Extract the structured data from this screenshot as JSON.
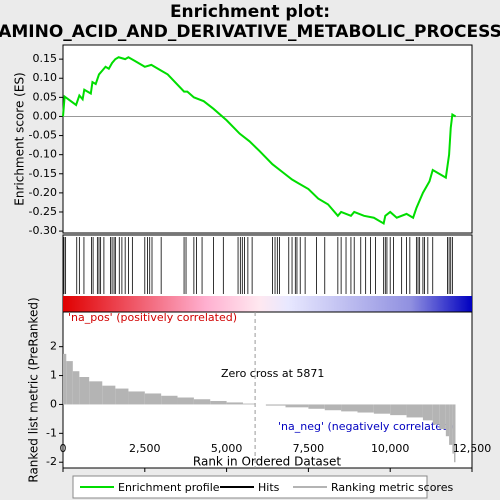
{
  "chart_data": {
    "type": "line",
    "title": [
      "Enrichment plot:",
      "AMINO_ACID_AND_DERIVATIVE_METABOLIC_PROCESS"
    ],
    "ylabel": "Enrichment score (ES)",
    "xlabel": "Rank in Ordered Dataset",
    "xlim": [
      0,
      12500
    ],
    "xticks": [
      0,
      {
        "value": 2500,
        "label": "2,500"
      },
      {
        "value": 5000,
        "label": "5,000"
      },
      {
        "value": 7500,
        "label": "7,500"
      },
      {
        "value": 10000,
        "label": "10,000"
      },
      {
        "value": 12500,
        "label": "12,500"
      }
    ],
    "ylim": [
      -0.305,
      0.187
    ],
    "yticks": [
      0.15,
      {
        "value": 0.1,
        "label": "0.10"
      },
      0.05,
      {
        "value": 0,
        "label": "0.00"
      },
      -0.05,
      {
        "value": -0.1,
        "label": "-0.10"
      },
      -0.15,
      {
        "value": -0.2,
        "label": "-0.20"
      },
      -0.25,
      {
        "value": -0.3,
        "label": "-0.30"
      }
    ],
    "series": [
      {
        "name": "Enrichment profile",
        "color": "#00dd00",
        "x": [
          0,
          50,
          400,
          500,
          600,
          650,
          850,
          900,
          1000,
          1100,
          1200,
          1300,
          1400,
          1500,
          1600,
          1700,
          1900,
          2000,
          2200,
          2500,
          2700,
          3000,
          3200,
          3700,
          3800,
          4000,
          4300,
          4600,
          5000,
          5400,
          5700,
          6000,
          6400,
          6700,
          7000,
          7200,
          7500,
          7800,
          8100,
          8400,
          8500,
          8800,
          8900,
          9200,
          9500,
          9800,
          9850,
          10000,
          10200,
          10500,
          10700,
          10800,
          11000,
          11200,
          11300,
          11700,
          11800,
          11850,
          11900,
          12000
        ],
        "values": [
          0.0,
          0.052,
          0.03,
          0.055,
          0.045,
          0.07,
          0.06,
          0.09,
          0.085,
          0.11,
          0.12,
          0.13,
          0.125,
          0.14,
          0.15,
          0.155,
          0.15,
          0.155,
          0.145,
          0.13,
          0.135,
          0.12,
          0.11,
          0.065,
          0.065,
          0.05,
          0.04,
          0.02,
          -0.01,
          -0.045,
          -0.065,
          -0.09,
          -0.125,
          -0.145,
          -0.165,
          -0.175,
          -0.19,
          -0.215,
          -0.23,
          -0.26,
          -0.25,
          -0.26,
          -0.25,
          -0.26,
          -0.265,
          -0.28,
          -0.26,
          -0.25,
          -0.265,
          -0.255,
          -0.265,
          -0.24,
          -0.2,
          -0.17,
          -0.14,
          -0.16,
          -0.1,
          -0.03,
          0.005,
          0.0
        ]
      }
    ],
    "hits": {
      "name": "Hits",
      "color": "#000000",
      "x": [
        30,
        80,
        420,
        500,
        640,
        870,
        920,
        1050,
        1100,
        1150,
        1250,
        1450,
        1500,
        1560,
        1600,
        1720,
        1800,
        1900,
        2000,
        2120,
        2500,
        2580,
        2650,
        2720,
        3000,
        3700,
        3760,
        4000,
        4080,
        4250,
        4600,
        4900,
        5350,
        5420,
        5480,
        5550,
        5650,
        5780,
        6400,
        6480,
        6550,
        6620,
        6900,
        7000,
        7100,
        7150,
        7250,
        7400,
        7750,
        8000,
        8400,
        8500,
        8650,
        8800,
        8900,
        9100,
        9250,
        9400,
        9550,
        9800,
        9850,
        9900,
        10000,
        10100,
        10350,
        10500,
        10600,
        10800,
        10850,
        10900,
        11000,
        11050,
        11150,
        11300,
        11750,
        11800,
        11850,
        11900
      ]
    },
    "metric": {
      "name": "Ranking metric scores",
      "color": "#b4b4b4",
      "ylabel": "Ranked list metric (PreRanked)",
      "ylim": [
        -2.2,
        3.2
      ],
      "yticks": [
        2,
        1,
        0,
        -1,
        -2
      ],
      "x": [
        0,
        100,
        300,
        500,
        800,
        1200,
        1600,
        2000,
        2500,
        3000,
        3500,
        4000,
        4500,
        5000,
        5500,
        5871,
        6200,
        6800,
        7500,
        8000,
        8500,
        9000,
        9500,
        10000,
        10500,
        11000,
        11300,
        11500,
        11700,
        11800,
        11900,
        11950
      ],
      "values": [
        1.75,
        1.5,
        1.15,
        0.95,
        0.8,
        0.65,
        0.55,
        0.45,
        0.38,
        0.3,
        0.24,
        0.18,
        0.12,
        0.07,
        0.03,
        0,
        -0.04,
        -0.1,
        -0.15,
        -0.2,
        -0.24,
        -0.28,
        -0.32,
        -0.37,
        -0.45,
        -0.55,
        -0.7,
        -0.85,
        -1.1,
        -1.4,
        -1.7,
        -2.0
      ]
    },
    "zero_cross": 5871,
    "annotations": {
      "pos": "'na_pos' (positively correlated)",
      "neg": "'na_neg' (negatively correlated)",
      "zero": "Zero cross at 5871"
    }
  }
}
